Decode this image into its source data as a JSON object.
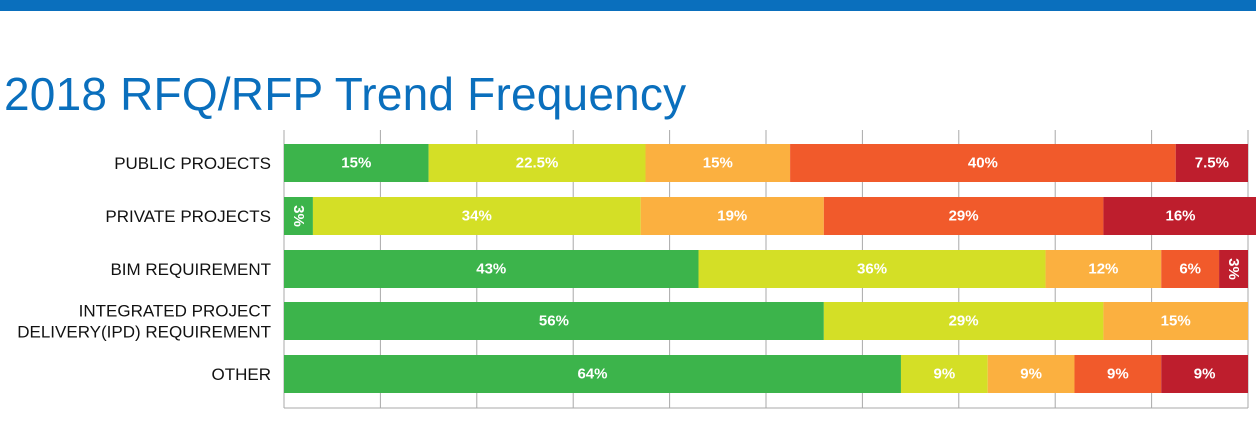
{
  "header": {
    "title": "2018 RFQ/RFP Trend Frequency"
  },
  "colors": {
    "top_bar": "#0a6fbd",
    "title": "#0a6fbd",
    "gridline": "#a9a9a9"
  },
  "chart_data": {
    "type": "bar",
    "orientation": "horizontal",
    "stacked": true,
    "title": "2018 RFQ/RFP Trend Frequency",
    "xlim": [
      0,
      100
    ],
    "grid": true,
    "categories": [
      [
        "PUBLIC PROJECTS"
      ],
      [
        "PRIVATE PROJECTS"
      ],
      [
        "BIM REQUIREMENT"
      ],
      [
        "INTEGRATED PROJECT",
        "DELIVERY(IPD) REQUIREMENT"
      ],
      [
        "OTHER"
      ]
    ],
    "segment_colors": [
      "#3cb44b",
      "#d4df26",
      "#fbb040",
      "#f15a2b",
      "#be1e2d"
    ],
    "rows": [
      {
        "values": [
          15,
          22.5,
          15,
          40,
          7.5
        ],
        "labels": [
          "15%",
          "22.5%",
          "15%",
          "40%",
          "7.5%"
        ]
      },
      {
        "values": [
          3,
          34,
          19,
          29,
          16
        ],
        "labels": [
          "3%",
          "34%",
          "19%",
          "29%",
          "16%"
        ]
      },
      {
        "values": [
          43,
          36,
          12,
          6,
          3
        ],
        "labels": [
          "43%",
          "36%",
          "12%",
          "6%",
          "3%"
        ]
      },
      {
        "values": [
          56,
          29,
          15
        ],
        "labels": [
          "56%",
          "29%",
          "15%"
        ]
      },
      {
        "values": [
          64,
          9,
          9,
          9,
          9
        ],
        "labels": [
          "64%",
          "9%",
          "9%",
          "9%",
          "9%"
        ]
      }
    ]
  }
}
